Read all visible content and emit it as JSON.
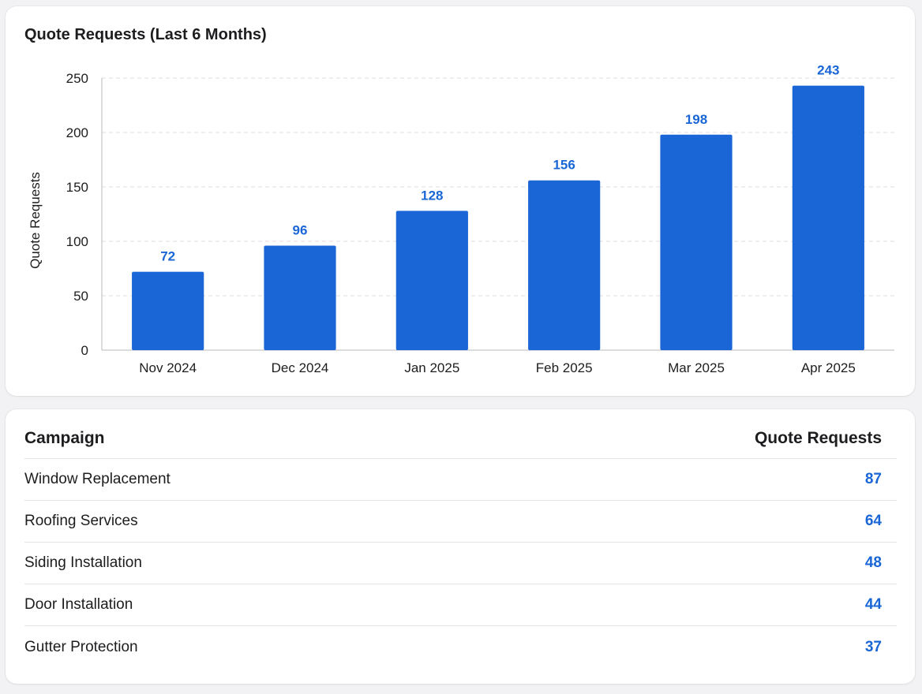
{
  "chart_card": {
    "title": "Quote Requests (Last 6 Months)"
  },
  "chart_data": {
    "type": "bar",
    "title": "Quote Requests (Last 6 Months)",
    "xlabel": "",
    "ylabel": "Quote Requests",
    "categories": [
      "Nov 2024",
      "Dec 2024",
      "Jan 2025",
      "Feb 2025",
      "Mar 2025",
      "Apr 2025"
    ],
    "values": [
      72,
      96,
      128,
      156,
      198,
      243
    ],
    "data_labels": [
      "72",
      "96",
      "128",
      "156",
      "198",
      "243"
    ],
    "ylim": [
      0,
      250
    ],
    "yticks": [
      0,
      50,
      100,
      150,
      200,
      250
    ],
    "grid": true,
    "legend": "none",
    "bar_color": "#1a66d6",
    "label_color": "#1a66d6"
  },
  "table": {
    "headers": {
      "campaign": "Campaign",
      "quote_requests": "Quote Requests"
    },
    "rows": [
      {
        "campaign": "Window Replacement",
        "quote_requests": "87"
      },
      {
        "campaign": "Roofing Services",
        "quote_requests": "64"
      },
      {
        "campaign": "Siding Installation",
        "quote_requests": "48"
      },
      {
        "campaign": "Door Installation",
        "quote_requests": "44"
      },
      {
        "campaign": "Gutter Protection",
        "quote_requests": "37"
      }
    ]
  }
}
